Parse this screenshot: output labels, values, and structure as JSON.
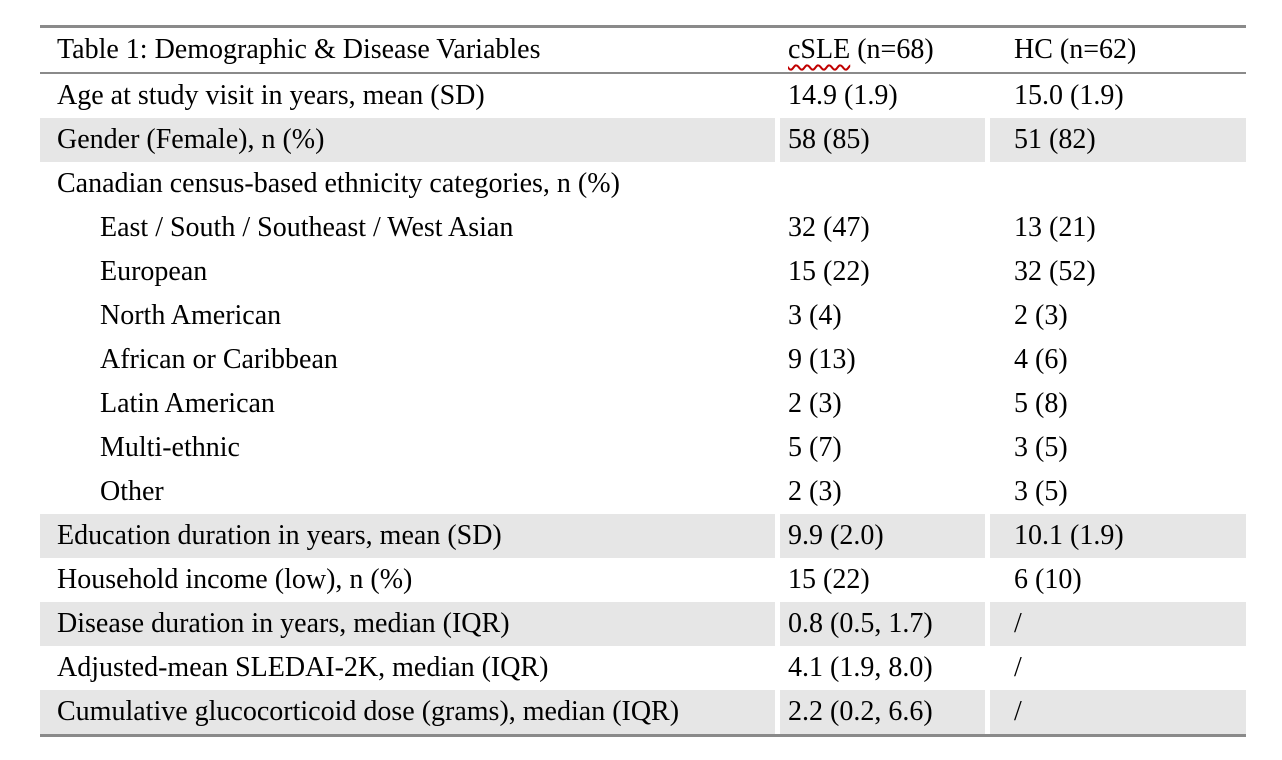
{
  "theme": {
    "shaded-row": "#e6e6e6",
    "border-gray": "#8a8a8a",
    "squiggle-red": "#c00000"
  },
  "table": {
    "header": {
      "variable": "Table 1: Demographic & Disease Variables",
      "csle_word": "cSLE",
      "csle_rest": " (n=68)",
      "hc": "HC (n=62)"
    },
    "rows": [
      {
        "label": "Age at study visit in years, mean (SD)",
        "csle": "14.9 (1.9)",
        "hc": "15.0 (1.9)",
        "shaded": false,
        "indent": false
      },
      {
        "label": "Gender (Female), n (%)",
        "csle": "58 (85)",
        "hc": "51 (82)",
        "shaded": true,
        "indent": false
      },
      {
        "label": "Canadian census-based ethnicity categories, n (%)",
        "csle": "",
        "hc": "",
        "shaded": false,
        "indent": false
      },
      {
        "label": "East / South / Southeast / West Asian",
        "csle": "32 (47)",
        "hc": "13 (21)",
        "shaded": false,
        "indent": true
      },
      {
        "label": "European",
        "csle": "15 (22)",
        "hc": "32 (52)",
        "shaded": false,
        "indent": true
      },
      {
        "label": "North American",
        "csle": "3 (4)",
        "hc": "2 (3)",
        "shaded": false,
        "indent": true
      },
      {
        "label": "African or Caribbean",
        "csle": "9 (13)",
        "hc": "4 (6)",
        "shaded": false,
        "indent": true
      },
      {
        "label": "Latin American",
        "csle": "2 (3)",
        "hc": "5 (8)",
        "shaded": false,
        "indent": true
      },
      {
        "label": "Multi-ethnic",
        "csle": "5 (7)",
        "hc": "3 (5)",
        "shaded": false,
        "indent": true
      },
      {
        "label": "Other",
        "csle": "2 (3)",
        "hc": "3 (5)",
        "shaded": false,
        "indent": true
      },
      {
        "label": "Education duration in years, mean (SD)",
        "csle": "9.9 (2.0)",
        "hc": "10.1 (1.9)",
        "shaded": true,
        "indent": false
      },
      {
        "label": "Household income (low), n (%)",
        "csle": "15 (22)",
        "hc": "6 (10)",
        "shaded": false,
        "indent": false
      },
      {
        "label": "Disease duration in years, median (IQR)",
        "csle": "0.8 (0.5, 1.7)",
        "hc": "/",
        "shaded": true,
        "indent": false
      },
      {
        "label": "Adjusted-mean SLEDAI-2K, median (IQR)",
        "csle": "4.1 (1.9, 8.0)",
        "hc": "/",
        "shaded": false,
        "indent": false
      },
      {
        "label": "Cumulative glucocorticoid dose (grams), median (IQR)",
        "csle": "2.2 (0.2, 6.6)",
        "hc": "/",
        "shaded": true,
        "indent": false
      }
    ]
  }
}
